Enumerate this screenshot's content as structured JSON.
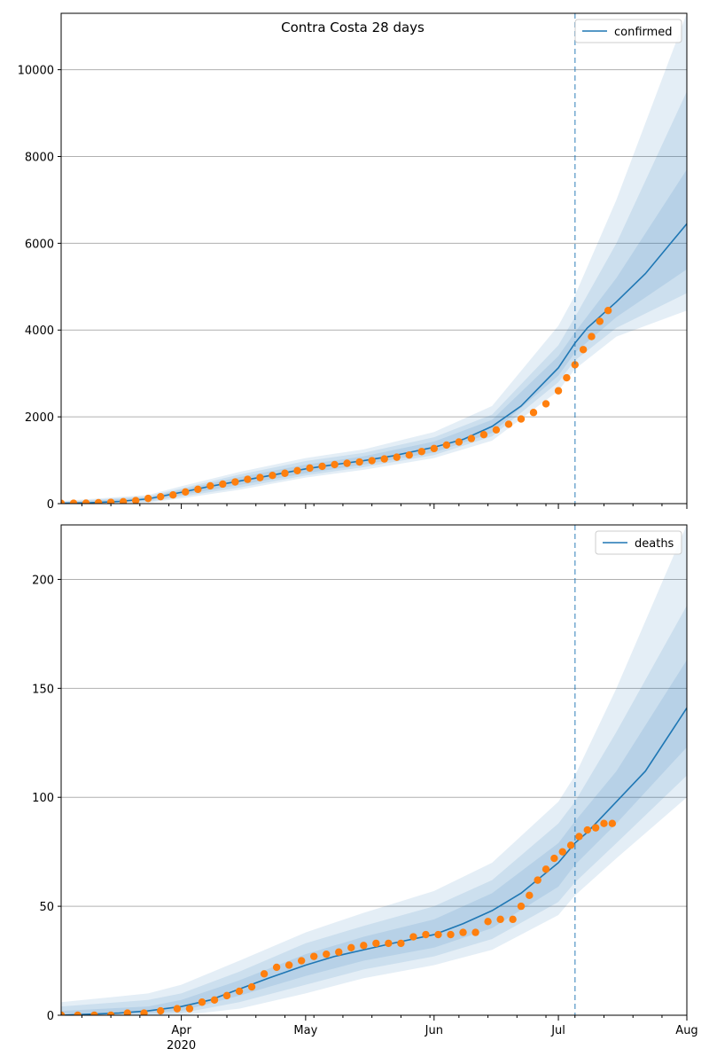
{
  "title": "Contra Costa 28 days",
  "x_axis": {
    "ticks": [
      {
        "label": "Apr",
        "sub": "2020",
        "date": "2020-04-01"
      },
      {
        "label": "May",
        "sub": "",
        "date": "2020-05-01"
      },
      {
        "label": "Jun",
        "sub": "",
        "date": "2020-06-01"
      },
      {
        "label": "Jul",
        "sub": "",
        "date": "2020-07-01"
      },
      {
        "label": "Aug",
        "sub": "",
        "date": "2020-08-01"
      }
    ],
    "range": [
      "2020-03-03",
      "2020-08-01"
    ],
    "forecast_marker_date": "2020-07-05"
  },
  "colors": {
    "line": "#1f77b4",
    "points": "#ff7f0e",
    "band": "#1f77b4",
    "marker": "#1f77b4",
    "grid": "#b0b0b0"
  },
  "chart_data": [
    {
      "type": "line",
      "name": "confirmed-panel",
      "grid": "horizontal",
      "legend_position": "top-right",
      "ylim": [
        0,
        11300
      ],
      "yticks": [
        0,
        2000,
        4000,
        6000,
        8000,
        10000
      ],
      "model_series": {
        "name": "confirmed",
        "points": [
          [
            "2020-03-03",
            10
          ],
          [
            "2020-03-10",
            20
          ],
          [
            "2020-03-17",
            50
          ],
          [
            "2020-03-24",
            110
          ],
          [
            "2020-04-01",
            260
          ],
          [
            "2020-04-08",
            400
          ],
          [
            "2020-04-15",
            520
          ],
          [
            "2020-04-22",
            640
          ],
          [
            "2020-05-01",
            800
          ],
          [
            "2020-05-08",
            900
          ],
          [
            "2020-05-15",
            990
          ],
          [
            "2020-05-22",
            1100
          ],
          [
            "2020-06-01",
            1300
          ],
          [
            "2020-06-08",
            1480
          ],
          [
            "2020-06-15",
            1780
          ],
          [
            "2020-06-22",
            2250
          ],
          [
            "2020-07-01",
            3130
          ],
          [
            "2020-07-05",
            3700
          ],
          [
            "2020-07-08",
            4050
          ],
          [
            "2020-07-15",
            4650
          ],
          [
            "2020-07-22",
            5300
          ],
          [
            "2020-08-01",
            6450
          ]
        ]
      },
      "bands": [
        {
          "label": "outer",
          "points": [
            [
              "2020-03-03",
              0,
              60
            ],
            [
              "2020-03-24",
              20,
              200
            ],
            [
              "2020-04-01",
              120,
              400
            ],
            [
              "2020-04-15",
              320,
              730
            ],
            [
              "2020-05-01",
              600,
              1050
            ],
            [
              "2020-05-15",
              780,
              1250
            ],
            [
              "2020-06-01",
              1050,
              1650
            ],
            [
              "2020-06-15",
              1450,
              2250
            ],
            [
              "2020-07-01",
              2600,
              4100
            ],
            [
              "2020-07-05",
              3100,
              4800
            ],
            [
              "2020-07-15",
              3850,
              7000
            ],
            [
              "2020-08-01",
              4450,
              11300
            ]
          ]
        },
        {
          "label": "middle",
          "points": [
            [
              "2020-03-03",
              0,
              40
            ],
            [
              "2020-03-24",
              40,
              170
            ],
            [
              "2020-04-01",
              160,
              350
            ],
            [
              "2020-04-15",
              370,
              670
            ],
            [
              "2020-05-01",
              650,
              980
            ],
            [
              "2020-05-15",
              840,
              1170
            ],
            [
              "2020-06-01",
              1120,
              1530
            ],
            [
              "2020-06-15",
              1550,
              2050
            ],
            [
              "2020-07-01",
              2800,
              3650
            ],
            [
              "2020-07-05",
              3300,
              4300
            ],
            [
              "2020-07-15",
              4050,
              6000
            ],
            [
              "2020-08-01",
              4850,
              9500
            ]
          ]
        },
        {
          "label": "inner",
          "points": [
            [
              "2020-03-03",
              0,
              25
            ],
            [
              "2020-03-24",
              70,
              140
            ],
            [
              "2020-04-01",
              200,
              320
            ],
            [
              "2020-04-15",
              430,
              610
            ],
            [
              "2020-05-01",
              700,
              900
            ],
            [
              "2020-05-15",
              900,
              1090
            ],
            [
              "2020-06-01",
              1180,
              1430
            ],
            [
              "2020-06-15",
              1630,
              1930
            ],
            [
              "2020-07-01",
              2950,
              3400
            ],
            [
              "2020-07-05",
              3480,
              3950
            ],
            [
              "2020-07-15",
              4300,
              5200
            ],
            [
              "2020-08-01",
              5400,
              7700
            ]
          ]
        }
      ],
      "observed": [
        [
          "2020-03-03",
          5
        ],
        [
          "2020-03-06",
          8
        ],
        [
          "2020-03-09",
          12
        ],
        [
          "2020-03-12",
          22
        ],
        [
          "2020-03-15",
          30
        ],
        [
          "2020-03-18",
          45
        ],
        [
          "2020-03-21",
          70
        ],
        [
          "2020-03-24",
          120
        ],
        [
          "2020-03-27",
          160
        ],
        [
          "2020-03-30",
          200
        ],
        [
          "2020-04-02",
          270
        ],
        [
          "2020-04-05",
          330
        ],
        [
          "2020-04-08",
          410
        ],
        [
          "2020-04-11",
          450
        ],
        [
          "2020-04-14",
          500
        ],
        [
          "2020-04-17",
          560
        ],
        [
          "2020-04-20",
          600
        ],
        [
          "2020-04-23",
          650
        ],
        [
          "2020-04-26",
          700
        ],
        [
          "2020-04-29",
          760
        ],
        [
          "2020-05-02",
          820
        ],
        [
          "2020-05-05",
          860
        ],
        [
          "2020-05-08",
          900
        ],
        [
          "2020-05-11",
          930
        ],
        [
          "2020-05-14",
          960
        ],
        [
          "2020-05-17",
          990
        ],
        [
          "2020-05-20",
          1030
        ],
        [
          "2020-05-23",
          1070
        ],
        [
          "2020-05-26",
          1120
        ],
        [
          "2020-05-29",
          1200
        ],
        [
          "2020-06-01",
          1270
        ],
        [
          "2020-06-04",
          1350
        ],
        [
          "2020-06-07",
          1420
        ],
        [
          "2020-06-10",
          1500
        ],
        [
          "2020-06-13",
          1590
        ],
        [
          "2020-06-16",
          1700
        ],
        [
          "2020-06-19",
          1830
        ],
        [
          "2020-06-22",
          1950
        ],
        [
          "2020-06-25",
          2100
        ],
        [
          "2020-06-28",
          2300
        ],
        [
          "2020-07-01",
          2600
        ],
        [
          "2020-07-03",
          2900
        ],
        [
          "2020-07-05",
          3200
        ],
        [
          "2020-07-07",
          3550
        ],
        [
          "2020-07-09",
          3850
        ],
        [
          "2020-07-11",
          4200
        ],
        [
          "2020-07-13",
          4450
        ]
      ]
    },
    {
      "type": "line",
      "name": "deaths-panel",
      "grid": "horizontal",
      "legend_position": "top-right",
      "ylim": [
        0,
        225
      ],
      "yticks": [
        0,
        50,
        100,
        150,
        200
      ],
      "model_series": {
        "name": "deaths",
        "points": [
          [
            "2020-03-03",
            0
          ],
          [
            "2020-03-17",
            1
          ],
          [
            "2020-03-24",
            2
          ],
          [
            "2020-04-01",
            4
          ],
          [
            "2020-04-08",
            7
          ],
          [
            "2020-04-15",
            12
          ],
          [
            "2020-04-22",
            17
          ],
          [
            "2020-05-01",
            23
          ],
          [
            "2020-05-08",
            27
          ],
          [
            "2020-05-15",
            30
          ],
          [
            "2020-05-22",
            33
          ],
          [
            "2020-06-01",
            37
          ],
          [
            "2020-06-08",
            42
          ],
          [
            "2020-06-15",
            48
          ],
          [
            "2020-06-22",
            56
          ],
          [
            "2020-07-01",
            70
          ],
          [
            "2020-07-05",
            79
          ],
          [
            "2020-07-08",
            84
          ],
          [
            "2020-07-15",
            98
          ],
          [
            "2020-07-22",
            112
          ],
          [
            "2020-08-01",
            141
          ]
        ]
      },
      "bands": [
        {
          "label": "outer",
          "points": [
            [
              "2020-03-03",
              0,
              6
            ],
            [
              "2020-03-24",
              0,
              10
            ],
            [
              "2020-04-01",
              0,
              14
            ],
            [
              "2020-04-15",
              3,
              25
            ],
            [
              "2020-05-01",
              10,
              38
            ],
            [
              "2020-05-15",
              17,
              47
            ],
            [
              "2020-06-01",
              23,
              57
            ],
            [
              "2020-06-15",
              30,
              70
            ],
            [
              "2020-07-01",
              46,
              98
            ],
            [
              "2020-07-05",
              55,
              110
            ],
            [
              "2020-07-15",
              72,
              150
            ],
            [
              "2020-08-01",
              100,
              225
            ]
          ]
        },
        {
          "label": "middle",
          "points": [
            [
              "2020-03-03",
              0,
              4
            ],
            [
              "2020-03-24",
              0,
              7
            ],
            [
              "2020-04-01",
              1,
              10
            ],
            [
              "2020-04-15",
              6,
              20
            ],
            [
              "2020-05-01",
              14,
              33
            ],
            [
              "2020-05-15",
              21,
              41
            ],
            [
              "2020-06-01",
              27,
              50
            ],
            [
              "2020-06-15",
              35,
              62
            ],
            [
              "2020-07-01",
              52,
              88
            ],
            [
              "2020-07-05",
              61,
              98
            ],
            [
              "2020-07-15",
              79,
              130
            ],
            [
              "2020-08-01",
              110,
              188
            ]
          ]
        },
        {
          "label": "inner",
          "points": [
            [
              "2020-03-03",
              0,
              2
            ],
            [
              "2020-03-24",
              1,
              4
            ],
            [
              "2020-04-01",
              2,
              7
            ],
            [
              "2020-04-15",
              9,
              16
            ],
            [
              "2020-05-01",
              18,
              28
            ],
            [
              "2020-05-15",
              25,
              36
            ],
            [
              "2020-06-01",
              31,
              44
            ],
            [
              "2020-06-15",
              40,
              56
            ],
            [
              "2020-07-01",
              59,
              79
            ],
            [
              "2020-07-05",
              69,
              89
            ],
            [
              "2020-07-15",
              88,
              112
            ],
            [
              "2020-08-01",
              123,
              163
            ]
          ]
        }
      ],
      "observed": [
        [
          "2020-03-03",
          0
        ],
        [
          "2020-03-07",
          0
        ],
        [
          "2020-03-11",
          0
        ],
        [
          "2020-03-15",
          0
        ],
        [
          "2020-03-19",
          1
        ],
        [
          "2020-03-23",
          1
        ],
        [
          "2020-03-27",
          2
        ],
        [
          "2020-03-31",
          3
        ],
        [
          "2020-04-03",
          3
        ],
        [
          "2020-04-06",
          6
        ],
        [
          "2020-04-09",
          7
        ],
        [
          "2020-04-12",
          9
        ],
        [
          "2020-04-15",
          11
        ],
        [
          "2020-04-18",
          13
        ],
        [
          "2020-04-21",
          19
        ],
        [
          "2020-04-24",
          22
        ],
        [
          "2020-04-27",
          23
        ],
        [
          "2020-04-30",
          25
        ],
        [
          "2020-05-03",
          27
        ],
        [
          "2020-05-06",
          28
        ],
        [
          "2020-05-09",
          29
        ],
        [
          "2020-05-12",
          31
        ],
        [
          "2020-05-15",
          32
        ],
        [
          "2020-05-18",
          33
        ],
        [
          "2020-05-21",
          33
        ],
        [
          "2020-05-24",
          33
        ],
        [
          "2020-05-27",
          36
        ],
        [
          "2020-05-30",
          37
        ],
        [
          "2020-06-02",
          37
        ],
        [
          "2020-06-05",
          37
        ],
        [
          "2020-06-08",
          38
        ],
        [
          "2020-06-11",
          38
        ],
        [
          "2020-06-14",
          43
        ],
        [
          "2020-06-17",
          44
        ],
        [
          "2020-06-20",
          44
        ],
        [
          "2020-06-22",
          50
        ],
        [
          "2020-06-24",
          55
        ],
        [
          "2020-06-26",
          62
        ],
        [
          "2020-06-28",
          67
        ],
        [
          "2020-06-30",
          72
        ],
        [
          "2020-07-02",
          75
        ],
        [
          "2020-07-04",
          78
        ],
        [
          "2020-07-06",
          82
        ],
        [
          "2020-07-08",
          85
        ],
        [
          "2020-07-10",
          86
        ],
        [
          "2020-07-12",
          88
        ],
        [
          "2020-07-14",
          88
        ]
      ]
    }
  ]
}
